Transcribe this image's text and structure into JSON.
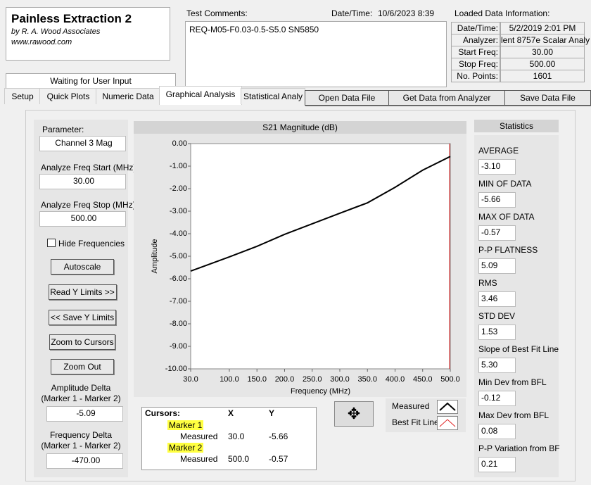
{
  "header": {
    "title": "Painless Extraction 2",
    "author": "by R. A. Wood Associates",
    "url": "www.rawood.com"
  },
  "status": "Waiting for User Input",
  "comments": {
    "label": "Test Comments:",
    "text": "REQ-M05-F0.03-0.5-S5.0  SN5850"
  },
  "datetime": {
    "label": "Date/Time:",
    "value": "10/6/2023  8:39"
  },
  "loaded": {
    "title": "Loaded Data Information:",
    "rows": [
      [
        "Date/Time:",
        "5/2/2019 2:01 PM"
      ],
      [
        "Analyzer:",
        "lent 8757e Scalar Analy"
      ],
      [
        "Start Freq:",
        "30.00"
      ],
      [
        "Stop Freq:",
        "500.00"
      ],
      [
        "No. Points:",
        "1601"
      ]
    ]
  },
  "tabs": [
    "Setup",
    "Quick Plots",
    "Numeric Data",
    "Graphical Analysis",
    "Statistical Analy"
  ],
  "buttons": [
    "Open Data File",
    "Get Data from Analyzer",
    "Save Data File"
  ],
  "left": {
    "parameter_label": "Parameter:",
    "parameter": "Channel 3 Mag",
    "start_label": "Analyze Freq Start (MHz)",
    "start": "30.00",
    "stop_label": "Analyze Freq Stop (MHz)",
    "stop": "500.00",
    "hide": "Hide Frequencies",
    "buttons": [
      "Autoscale",
      "Read Y Limits >>",
      "<< Save Y Limits",
      "Zoom to Cursors",
      "Zoom Out"
    ],
    "amp_label": [
      "Amplitude Delta",
      "(Marker 1 - Marker 2)"
    ],
    "amp": "-5.09",
    "freq_label": [
      "Frequency Delta",
      "(Marker 1 - Marker 2)"
    ],
    "freq": "-470.00"
  },
  "cursors": {
    "headers": [
      "Cursors:",
      "X",
      "Y"
    ],
    "rows": [
      [
        "Marker 1",
        "",
        ""
      ],
      [
        "Measured",
        "30.0",
        "-5.66"
      ],
      [
        "Marker 2",
        "",
        ""
      ],
      [
        "Measured",
        "500.0",
        "-0.57"
      ]
    ]
  },
  "statistics": {
    "title": "Statistics",
    "items": [
      [
        "AVERAGE",
        "-3.10"
      ],
      [
        "MIN OF DATA",
        "-5.66"
      ],
      [
        "MAX OF DATA",
        "-0.57"
      ],
      [
        "P-P FLATNESS",
        "5.09"
      ],
      [
        "RMS",
        "3.46"
      ],
      [
        "STD DEV",
        "1.53"
      ],
      [
        "Slope of Best Fit Line",
        "5.30"
      ],
      [
        "Min Dev from BFL",
        "-0.12"
      ],
      [
        "Max Dev from BFL",
        "0.08"
      ],
      [
        "P-P Variation from BF",
        "0.21"
      ]
    ]
  },
  "chart_data": {
    "type": "line",
    "title": "S21 Magnitude (dB)",
    "x_label": "Frequency (MHz)",
    "y_label": "Amplitude",
    "x": [
      30,
      100,
      150,
      200,
      250,
      300,
      350,
      400,
      450,
      500
    ],
    "series": [
      {
        "name": "Measured",
        "color": "#000000",
        "values": [
          -5.66,
          -5.03,
          -4.56,
          -4.03,
          -3.56,
          -3.09,
          -2.63,
          -1.94,
          -1.18,
          -0.57
        ]
      },
      {
        "name": "Best Fit Line",
        "color": "#e02020",
        "values": [
          -5.72,
          null,
          null,
          null,
          null,
          null,
          null,
          null,
          null,
          -0.42
        ]
      }
    ],
    "xlim": [
      30,
      500
    ],
    "xticks": [
      {
        "value": 30,
        "label": "30.0"
      },
      {
        "value": 100,
        "label": "100.0"
      },
      {
        "value": 150,
        "label": "150.0"
      },
      {
        "value": 200,
        "label": "200.0"
      },
      {
        "value": 250,
        "label": "250.0"
      },
      {
        "value": 300,
        "label": "300.0"
      },
      {
        "value": 350,
        "label": "350.0"
      },
      {
        "value": 400,
        "label": "400.0"
      },
      {
        "value": 450,
        "label": "450.0"
      },
      {
        "value": 500,
        "label": "500.0"
      }
    ],
    "ylim": [
      -10,
      0
    ],
    "yticks": [
      {
        "value": 0,
        "label": "0.00"
      },
      {
        "value": -1,
        "label": "-1.00"
      },
      {
        "value": -2,
        "label": "-2.00"
      },
      {
        "value": -3,
        "label": "-3.00"
      },
      {
        "value": -4,
        "label": "-4.00"
      },
      {
        "value": -5,
        "label": "-5.00"
      },
      {
        "value": -6,
        "label": "-6.00"
      },
      {
        "value": -7,
        "label": "-7.00"
      },
      {
        "value": -8,
        "label": "-8.00"
      },
      {
        "value": -9,
        "label": "-9.00"
      },
      {
        "value": -10,
        "label": "-10.00"
      }
    ],
    "grid": false
  }
}
